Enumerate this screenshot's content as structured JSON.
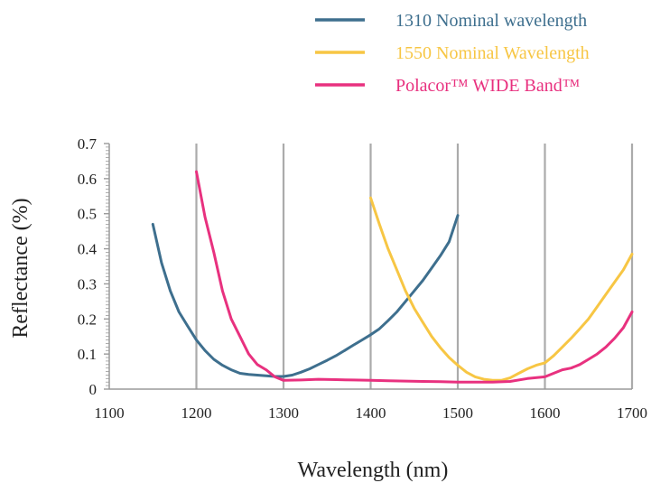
{
  "chart_data": {
    "type": "line",
    "title": "",
    "xlabel": "Wavelength (nm)",
    "ylabel": "Reflectance (%)",
    "xlim": [
      1100,
      1700
    ],
    "ylim": [
      0,
      0.7
    ],
    "x_ticks": [
      "1100",
      "1200",
      "1300",
      "1400",
      "1500",
      "1600",
      "1700"
    ],
    "y_ticks": [
      "0",
      "0.1",
      "0.2",
      "0.3",
      "0.4",
      "0.5",
      "0.6",
      "0.7"
    ],
    "grid": "vertical major gridlines",
    "legend_position": "top-right",
    "series": [
      {
        "name": "1310 Nominal wavelength",
        "color": "#3e6f8e",
        "x": [
          1150,
          1160,
          1170,
          1180,
          1190,
          1200,
          1210,
          1220,
          1230,
          1240,
          1250,
          1260,
          1270,
          1280,
          1290,
          1300,
          1310,
          1320,
          1330,
          1340,
          1350,
          1360,
          1370,
          1380,
          1390,
          1400,
          1410,
          1420,
          1430,
          1440,
          1450,
          1460,
          1470,
          1480,
          1490,
          1500
        ],
        "y": [
          0.47,
          0.36,
          0.28,
          0.22,
          0.18,
          0.14,
          0.11,
          0.085,
          0.068,
          0.055,
          0.045,
          0.042,
          0.04,
          0.038,
          0.036,
          0.036,
          0.04,
          0.048,
          0.058,
          0.07,
          0.082,
          0.095,
          0.11,
          0.125,
          0.14,
          0.155,
          0.172,
          0.195,
          0.22,
          0.25,
          0.28,
          0.31,
          0.345,
          0.38,
          0.42,
          0.495
        ]
      },
      {
        "name": "1550 Nominal Wavelength",
        "color": "#f7c644",
        "x": [
          1400,
          1410,
          1420,
          1430,
          1440,
          1450,
          1460,
          1470,
          1480,
          1490,
          1500,
          1510,
          1520,
          1530,
          1540,
          1550,
          1560,
          1570,
          1580,
          1590,
          1600,
          1610,
          1620,
          1630,
          1640,
          1650,
          1660,
          1670,
          1680,
          1690,
          1700
        ],
        "y": [
          0.545,
          0.47,
          0.4,
          0.34,
          0.28,
          0.23,
          0.19,
          0.15,
          0.118,
          0.09,
          0.068,
          0.048,
          0.035,
          0.028,
          0.025,
          0.025,
          0.032,
          0.045,
          0.058,
          0.068,
          0.075,
          0.095,
          0.12,
          0.145,
          0.172,
          0.2,
          0.235,
          0.27,
          0.305,
          0.34,
          0.385
        ]
      },
      {
        "name": "Polacor™ WIDE Band™",
        "color": "#e8317f",
        "x": [
          1200,
          1210,
          1220,
          1230,
          1240,
          1250,
          1260,
          1270,
          1280,
          1290,
          1300,
          1320,
          1340,
          1360,
          1380,
          1400,
          1420,
          1440,
          1460,
          1480,
          1500,
          1520,
          1540,
          1560,
          1580,
          1600,
          1610,
          1620,
          1630,
          1640,
          1650,
          1660,
          1670,
          1680,
          1690,
          1700
        ],
        "y": [
          0.62,
          0.49,
          0.39,
          0.28,
          0.2,
          0.15,
          0.1,
          0.07,
          0.055,
          0.035,
          0.025,
          0.026,
          0.028,
          0.027,
          0.026,
          0.025,
          0.024,
          0.023,
          0.022,
          0.021,
          0.02,
          0.02,
          0.02,
          0.022,
          0.03,
          0.035,
          0.045,
          0.055,
          0.06,
          0.07,
          0.085,
          0.1,
          0.12,
          0.145,
          0.175,
          0.22
        ]
      }
    ]
  }
}
